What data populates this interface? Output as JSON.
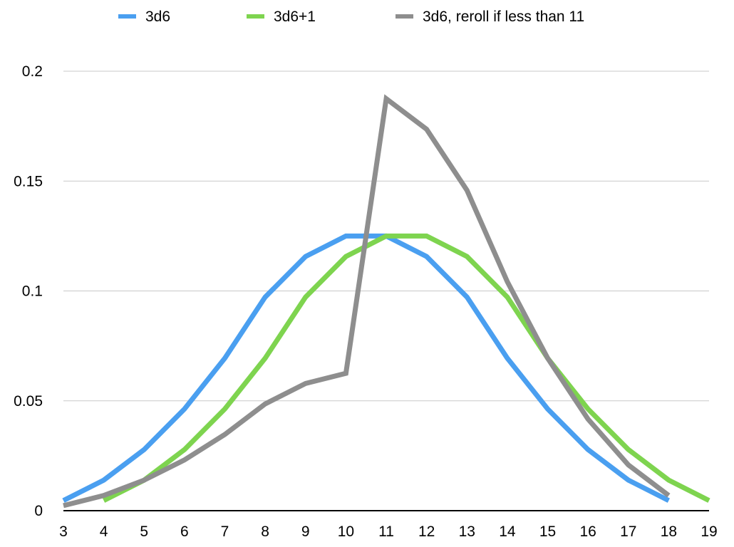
{
  "chart_data": {
    "type": "line",
    "title": "",
    "xlabel": "",
    "ylabel": "",
    "x_ticks": [
      3,
      4,
      5,
      6,
      7,
      8,
      9,
      10,
      11,
      12,
      13,
      14,
      15,
      16,
      17,
      18,
      19
    ],
    "y_ticks": [
      "0",
      "0.05",
      "0.1",
      "0.15",
      "0.2"
    ],
    "xlim": [
      3,
      19
    ],
    "ylim": [
      0,
      0.2
    ],
    "grid": true,
    "legend": "top",
    "series": [
      {
        "name": "3d6",
        "color": "#4a9ff0",
        "x": [
          3,
          4,
          5,
          6,
          7,
          8,
          9,
          10,
          11,
          12,
          13,
          14,
          15,
          16,
          17,
          18
        ],
        "values": [
          0.0046,
          0.0139,
          0.0278,
          0.0463,
          0.0694,
          0.0972,
          0.1157,
          0.125,
          0.125,
          0.1157,
          0.0972,
          0.0694,
          0.0463,
          0.0278,
          0.0139,
          0.0046
        ]
      },
      {
        "name": "3d6+1",
        "color": "#7ed44f",
        "x": [
          4,
          5,
          6,
          7,
          8,
          9,
          10,
          11,
          12,
          13,
          14,
          15,
          16,
          17,
          18,
          19
        ],
        "values": [
          0.0046,
          0.0139,
          0.0278,
          0.0463,
          0.0694,
          0.0972,
          0.1157,
          0.125,
          0.125,
          0.1157,
          0.0972,
          0.0694,
          0.0463,
          0.0278,
          0.0139,
          0.0046
        ]
      },
      {
        "name": "3d6, reroll if less than 11",
        "color": "#8e8e8e",
        "x": [
          3,
          4,
          5,
          6,
          7,
          8,
          9,
          10,
          11,
          12,
          13,
          14,
          15,
          16,
          17,
          18
        ],
        "values": [
          0.0023,
          0.0069,
          0.0139,
          0.0231,
          0.0347,
          0.0486,
          0.0579,
          0.0625,
          0.1875,
          0.1736,
          0.1458,
          0.1042,
          0.0694,
          0.0417,
          0.0208,
          0.0069
        ]
      }
    ]
  }
}
